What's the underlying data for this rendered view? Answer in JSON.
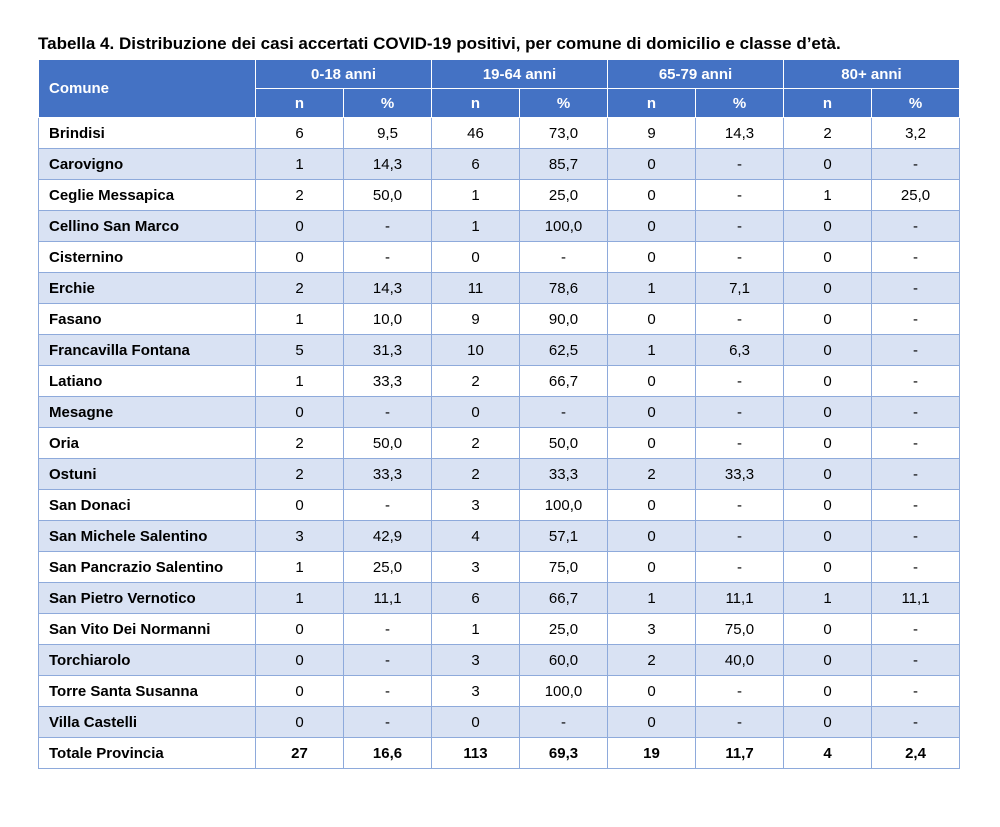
{
  "caption": "Tabella 4. Distribuzione dei casi accertati COVID-19 positivi, per comune di domicilio e classe d’età.",
  "header": {
    "comune": "Comune",
    "groups": [
      "0-18 anni",
      "19-64 anni",
      "65-79 anni",
      "80+ anni"
    ],
    "sub": [
      "n",
      "%",
      "n",
      "%",
      "n",
      "%",
      "n",
      "%"
    ]
  },
  "rows": [
    [
      "Brindisi",
      "6",
      "9,5",
      "46",
      "73,0",
      "9",
      "14,3",
      "2",
      "3,2"
    ],
    [
      "Carovigno",
      "1",
      "14,3",
      "6",
      "85,7",
      "0",
      "-",
      "0",
      "-"
    ],
    [
      "Ceglie Messapica",
      "2",
      "50,0",
      "1",
      "25,0",
      "0",
      "-",
      "1",
      "25,0"
    ],
    [
      "Cellino San Marco",
      "0",
      "-",
      "1",
      "100,0",
      "0",
      "-",
      "0",
      "-"
    ],
    [
      "Cisternino",
      "0",
      "-",
      "0",
      "-",
      "0",
      "-",
      "0",
      "-"
    ],
    [
      "Erchie",
      "2",
      "14,3",
      "11",
      "78,6",
      "1",
      "7,1",
      "0",
      "-"
    ],
    [
      "Fasano",
      "1",
      "10,0",
      "9",
      "90,0",
      "0",
      "-",
      "0",
      "-"
    ],
    [
      "Francavilla Fontana",
      "5",
      "31,3",
      "10",
      "62,5",
      "1",
      "6,3",
      "0",
      "-"
    ],
    [
      "Latiano",
      "1",
      "33,3",
      "2",
      "66,7",
      "0",
      "-",
      "0",
      "-"
    ],
    [
      "Mesagne",
      "0",
      "-",
      "0",
      "-",
      "0",
      "-",
      "0",
      "-"
    ],
    [
      "Oria",
      "2",
      "50,0",
      "2",
      "50,0",
      "0",
      "-",
      "0",
      "-"
    ],
    [
      "Ostuni",
      "2",
      "33,3",
      "2",
      "33,3",
      "2",
      "33,3",
      "0",
      "-"
    ],
    [
      "San Donaci",
      "0",
      "-",
      "3",
      "100,0",
      "0",
      "-",
      "0",
      "-"
    ],
    [
      "San Michele Salentino",
      "3",
      "42,9",
      "4",
      "57,1",
      "0",
      "-",
      "0",
      "-"
    ],
    [
      "San Pancrazio Salentino",
      "1",
      "25,0",
      "3",
      "75,0",
      "0",
      "-",
      "0",
      "-"
    ],
    [
      "San Pietro Vernotico",
      "1",
      "11,1",
      "6",
      "66,7",
      "1",
      "11,1",
      "1",
      "11,1"
    ],
    [
      "San Vito Dei Normanni",
      "0",
      "-",
      "1",
      "25,0",
      "3",
      "75,0",
      "0",
      "-"
    ],
    [
      "Torchiarolo",
      "0",
      "-",
      "3",
      "60,0",
      "2",
      "40,0",
      "0",
      "-"
    ],
    [
      "Torre Santa Susanna",
      "0",
      "-",
      "3",
      "100,0",
      "0",
      "-",
      "0",
      "-"
    ],
    [
      "Villa Castelli",
      "0",
      "-",
      "0",
      "-",
      "0",
      "-",
      "0",
      "-"
    ],
    [
      "Totale Provincia",
      "27",
      "16,6",
      "113",
      "69,3",
      "19",
      "11,7",
      "4",
      "2,4"
    ]
  ],
  "colors": {
    "header_bg": "#4472c4",
    "band_bg": "#d9e2f3",
    "border": "#8eaadb"
  }
}
